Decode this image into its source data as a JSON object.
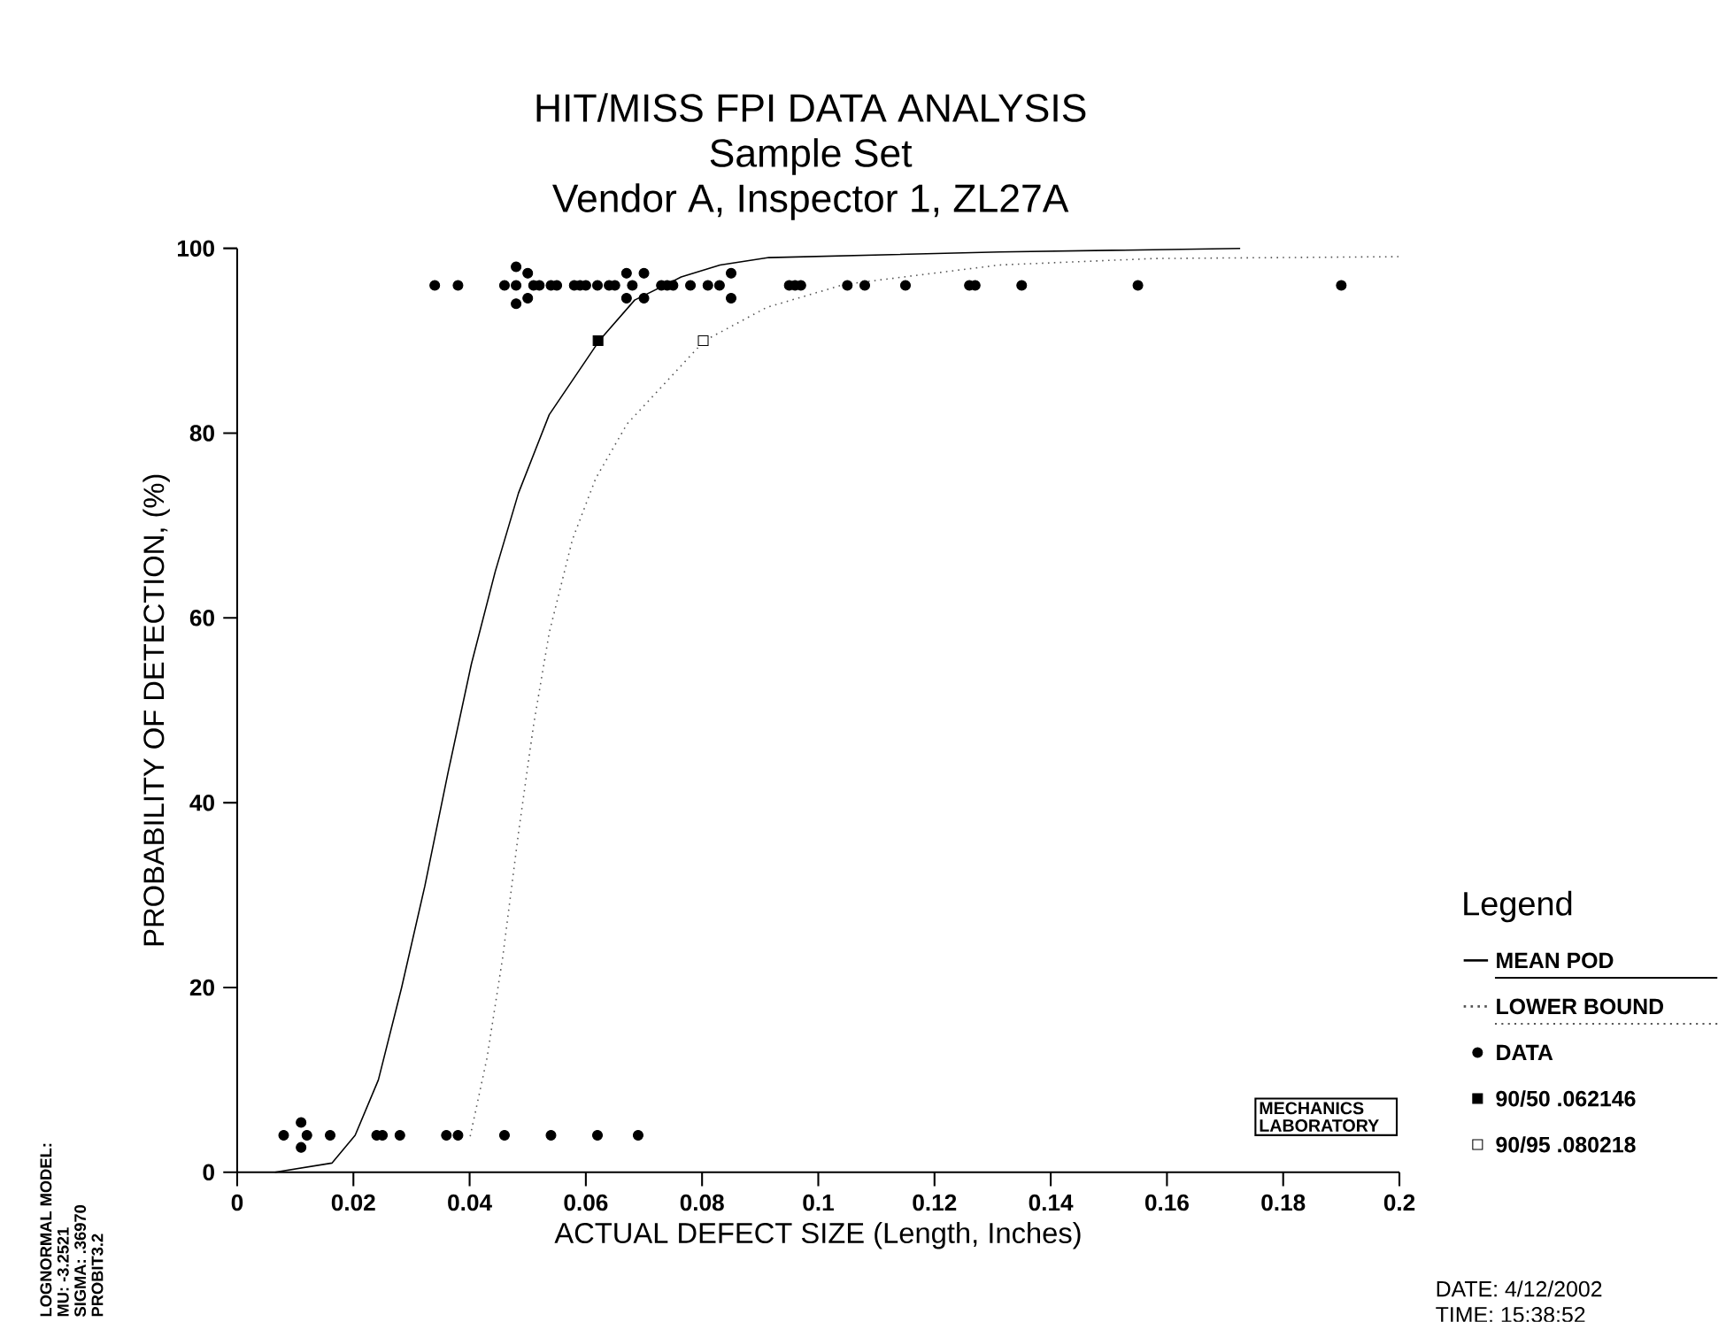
{
  "chart_data": {
    "type": "scatter",
    "title": "HIT/MISS FPI DATA ANALYSIS",
    "subtitle": "Sample Set",
    "xlabel": "ACTUAL DEFECT SIZE    (Length, Inches)",
    "ylabel": "PROBABILITY OF DETECTION, (%)",
    "legend_title": "Legend",
    "annotations": [
      "Vendor A, Inspector 1, ZL27A",
      "LOGNORMAL MODEL:",
      "MU:   -3.2521",
      "SIGMA:   .36970",
      "PROBIT3.2",
      "MECHANICS LABORATORY",
      "DATE:  4/12/2002",
      "TIME: 15:38:52"
    ],
    "xlim": [
      0,
      0.2
    ],
    "ylim": [
      0,
      100
    ],
    "xticks": [
      0,
      0.02,
      0.04,
      0.06,
      0.08,
      0.1,
      0.12,
      0.14,
      0.16,
      0.18,
      0.2
    ],
    "yticks": [
      0,
      20,
      40,
      60,
      80,
      100
    ],
    "grid": false,
    "legend": "right",
    "series": [
      {
        "name": "MEAN POD",
        "type": "line",
        "color": "#000000",
        "line_style": "solid",
        "marker": "none",
        "x": [
          0.0065,
          0.0163,
          0.0203,
          0.0243,
          0.0283,
          0.0323,
          0.0363,
          0.0403,
          0.0444,
          0.0484,
          0.0537,
          0.0623,
          0.0684,
          0.0764,
          0.0831,
          0.0915,
          0.1312,
          0.1726
        ],
        "values": [
          0,
          1,
          4,
          10,
          20,
          31,
          43.3,
          55,
          65,
          73.5,
          82,
          90,
          94.4,
          96.9,
          98.2,
          99,
          99.6,
          100
        ]
      },
      {
        "name": "LOWER BOUND",
        "type": "line",
        "color": "#555555",
        "line_style": "dotted",
        "marker": "none",
        "x": [
          0.0401,
          0.043,
          0.0457,
          0.0484,
          0.051,
          0.0537,
          0.0577,
          0.0617,
          0.0671,
          0.0804,
          0.0911,
          0.1045,
          0.1312,
          0.1579,
          0.2
        ],
        "values": [
          3.9,
          12.4,
          23.3,
          36.7,
          48.4,
          58.4,
          68.5,
          75.1,
          81,
          90,
          93.6,
          96.1,
          98.2,
          98.9,
          99.1
        ]
      },
      {
        "name": "DATA",
        "type": "scatter",
        "color": "#000000",
        "marker": "circle",
        "x": [
          0.034,
          0.038,
          0.046,
          0.048,
          0.048,
          0.048,
          0.05,
          0.05,
          0.051,
          0.052,
          0.054,
          0.055,
          0.058,
          0.059,
          0.06,
          0.062,
          0.064,
          0.065,
          0.067,
          0.067,
          0.068,
          0.07,
          0.07,
          0.073,
          0.074,
          0.075,
          0.078,
          0.081,
          0.083,
          0.085,
          0.085,
          0.095,
          0.096,
          0.097,
          0.105,
          0.108,
          0.115,
          0.126,
          0.127,
          0.135,
          0.155,
          0.19,
          0.008,
          0.011,
          0.011,
          0.012,
          0.016,
          0.024,
          0.025,
          0.028,
          0.036,
          0.038,
          0.046,
          0.054,
          0.062,
          0.069
        ],
        "values": [
          96,
          96,
          96,
          98,
          96,
          94,
          97.3,
          94.6,
          96,
          96,
          96,
          96,
          96,
          96,
          96,
          96,
          96,
          96,
          97.3,
          94.6,
          96,
          97.3,
          94.6,
          96,
          96,
          96,
          96,
          96,
          96,
          97.3,
          94.6,
          96,
          96,
          96,
          96,
          96,
          96,
          96,
          96,
          96,
          96,
          96,
          4,
          5.4,
          2.7,
          4,
          4,
          4,
          4,
          4,
          4,
          4,
          4,
          4,
          4,
          4
        ]
      },
      {
        "name": "90/50  .062146",
        "color": "#000000",
        "marker": "square",
        "x": [
          0.0621
        ],
        "values": [
          90
        ]
      },
      {
        "name": "90/95  .080218",
        "color": "#ffffff",
        "marker": "square",
        "x": [
          0.0802
        ],
        "values": [
          90
        ]
      }
    ]
  }
}
